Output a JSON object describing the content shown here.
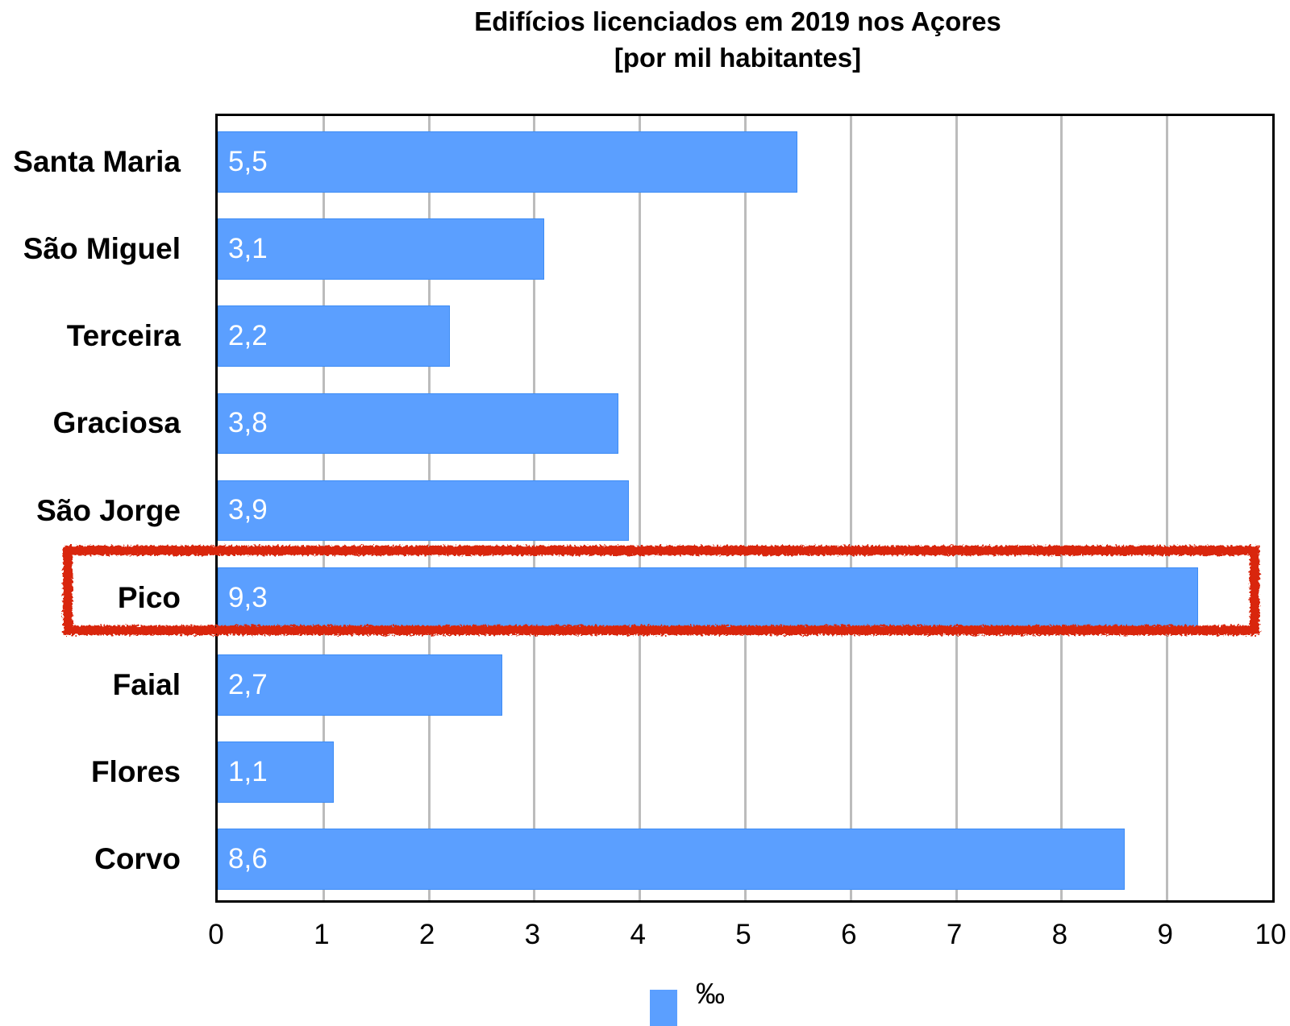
{
  "chart_data": {
    "type": "bar",
    "orientation": "horizontal",
    "title": "Edifícios licenciados em 2019 nos Açores",
    "subtitle": "[por mil habitantes]",
    "xlabel": "",
    "ylabel": "",
    "categories": [
      "Santa Maria",
      "São Miguel",
      "Terceira",
      "Graciosa",
      "São Jorge",
      "Pico",
      "Faial",
      "Flores",
      "Corvo"
    ],
    "values": [
      5.5,
      3.1,
      2.2,
      3.8,
      3.9,
      9.3,
      2.7,
      1.1,
      8.6
    ],
    "value_labels": [
      "5,5",
      "3,1",
      "2,2",
      "3,8",
      "3,9",
      "9,3",
      "2,7",
      "1,1",
      "8,6"
    ],
    "series": [
      {
        "name": "‰",
        "color": "#5b9fff",
        "values": [
          5.5,
          3.1,
          2.2,
          3.8,
          3.9,
          9.3,
          2.7,
          1.1,
          8.6
        ]
      }
    ],
    "xlim": [
      0,
      10
    ],
    "x_ticks": [
      "0",
      "1",
      "2",
      "3",
      "4",
      "5",
      "6",
      "7",
      "8",
      "9",
      "10"
    ],
    "grid": "vertical",
    "legend": {
      "position": "bottom",
      "entries": [
        "‰"
      ]
    },
    "annotations": [
      {
        "type": "highlight-box",
        "target": "Pico",
        "color": "#d9280c"
      }
    ]
  },
  "title": {
    "line1": "Edifícios licenciados em 2019 nos Açores",
    "line2": "[por mil habitantes]"
  },
  "legend": {
    "label": "‰"
  }
}
